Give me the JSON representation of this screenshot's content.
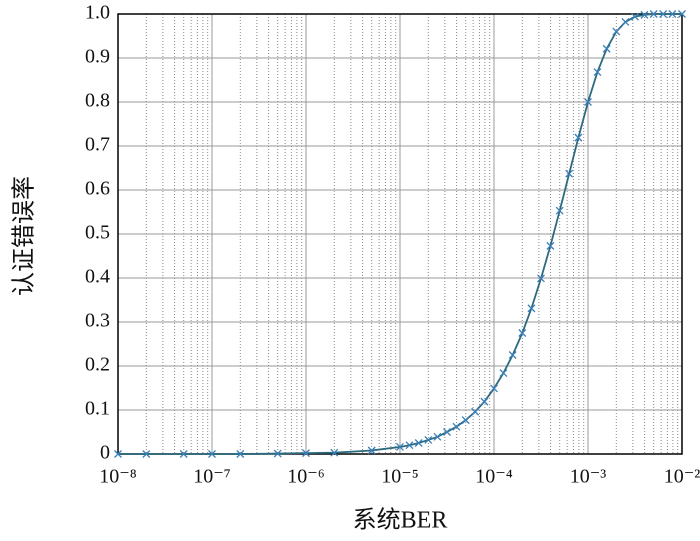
{
  "chart_data": {
    "type": "line",
    "xlabel": "系统BER",
    "ylabel": "认证错误率",
    "x": [
      1e-08,
      2e-08,
      5e-08,
      1e-07,
      2e-07,
      5e-07,
      1e-06,
      2e-06,
      5e-06,
      1e-05,
      1.26e-05,
      1.58e-05,
      2e-05,
      2.5e-05,
      3.16e-05,
      3.98e-05,
      5e-05,
      6.3e-05,
      7.9e-05,
      0.0001,
      0.000126,
      0.000158,
      0.0002,
      0.00025,
      0.000316,
      0.000398,
      0.0005,
      0.00063,
      0.00079,
      0.001,
      0.00126,
      0.00158,
      0.002,
      0.0025,
      0.00316,
      0.00398,
      0.005,
      0.0063,
      0.0079,
      0.01
    ],
    "series": [
      {
        "color": "#2b6a80",
        "marker_color": "#3a7fb8",
        "values": [
          0,
          0,
          0,
          0,
          0,
          0.001,
          0.002,
          0.003,
          0.008,
          0.016,
          0.02,
          0.025,
          0.032,
          0.039,
          0.05,
          0.062,
          0.077,
          0.096,
          0.119,
          0.149,
          0.184,
          0.225,
          0.275,
          0.331,
          0.399,
          0.473,
          0.553,
          0.637,
          0.719,
          0.8,
          0.868,
          0.921,
          0.96,
          0.982,
          0.994,
          0.998,
          1,
          1,
          1,
          1
        ]
      }
    ],
    "xlog": true,
    "xlim": [
      1e-08,
      0.01
    ],
    "xticks": [
      {
        "value": 1e-08,
        "label": "10⁻⁸"
      },
      {
        "value": 1e-07,
        "label": "10⁻⁷"
      },
      {
        "value": 1e-06,
        "label": "10⁻⁶"
      },
      {
        "value": 1e-05,
        "label": "10⁻⁵"
      },
      {
        "value": 0.0001,
        "label": "10⁻⁴"
      },
      {
        "value": 0.001,
        "label": "10⁻³"
      },
      {
        "value": 0.01,
        "label": "10⁻²"
      }
    ],
    "xticks_minor": [
      2e-08,
      3e-08,
      4e-08,
      5e-08,
      6e-08,
      7e-08,
      8e-08,
      9e-08,
      2e-07,
      3e-07,
      4e-07,
      5e-07,
      6e-07,
      7e-07,
      8e-07,
      9e-07,
      2e-06,
      3e-06,
      4e-06,
      5e-06,
      6e-06,
      7e-06,
      8e-06,
      9e-06,
      2e-05,
      3e-05,
      4e-05,
      5e-05,
      6e-05,
      7e-05,
      8e-05,
      9e-05,
      0.0002,
      0.0003,
      0.0004,
      0.0005,
      0.0006,
      0.0007,
      0.0008,
      0.0009,
      0.002,
      0.003,
      0.004,
      0.005,
      0.006,
      0.007,
      0.008,
      0.009
    ],
    "ylim": [
      0,
      1
    ],
    "yticks": [
      0,
      0.1,
      0.2,
      0.3,
      0.4,
      0.5,
      0.6,
      0.7,
      0.8,
      0.9,
      {
        "value": 1,
        "label": "1.0"
      }
    ],
    "grid": true
  }
}
